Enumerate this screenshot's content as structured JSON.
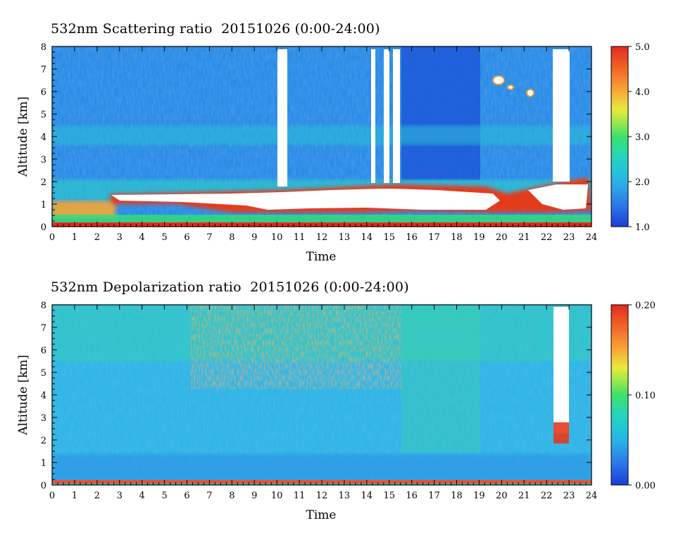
{
  "chart_data": [
    {
      "type": "heatmap",
      "title": "532nm Scattering ratio  20151026 (0:00-24:00)",
      "xlabel": "Time",
      "ylabel": "Altitude [km]",
      "x_ticks": [
        "0",
        "1",
        "2",
        "3",
        "4",
        "5",
        "6",
        "7",
        "8",
        "9",
        "10",
        "11",
        "12",
        "13",
        "14",
        "15",
        "16",
        "17",
        "18",
        "19",
        "20",
        "21",
        "22",
        "23",
        "24"
      ],
      "y_ticks": [
        "0",
        "1",
        "2",
        "3",
        "4",
        "5",
        "6",
        "7",
        "8"
      ],
      "xlim": [
        0,
        24
      ],
      "ylim": [
        0,
        8
      ],
      "colorbar": {
        "min": 1.0,
        "max": 5.0,
        "ticks": [
          "1.0",
          "2.0",
          "3.0",
          "4.0",
          "5.0"
        ]
      },
      "features": {
        "background_value": 1.7,
        "aerosol_layer_top_km": 1.8,
        "cloud_layer_km": [
          1.2,
          1.8
        ],
        "cloud_layer_hours": [
          2.5,
          24
        ],
        "clear_columns_hours": [
          [
            10.0,
            10.5
          ],
          [
            13.6,
            13.8
          ],
          [
            14.3,
            14.7
          ],
          [
            15.0,
            15.5
          ],
          [
            22.5,
            23.2
          ]
        ],
        "mid_layer_km": 4.2
      }
    },
    {
      "type": "heatmap",
      "title": "532nm Depolarization ratio  20151026 (0:00-24:00)",
      "xlabel": "Time",
      "ylabel": "Altitude [km]",
      "x_ticks": [
        "0",
        "1",
        "2",
        "3",
        "4",
        "5",
        "6",
        "7",
        "8",
        "9",
        "10",
        "11",
        "12",
        "13",
        "14",
        "15",
        "16",
        "17",
        "18",
        "19",
        "20",
        "21",
        "22",
        "23",
        "24"
      ],
      "y_ticks": [
        "0",
        "1",
        "2",
        "3",
        "4",
        "5",
        "6",
        "7",
        "8"
      ],
      "xlim": [
        0,
        24
      ],
      "ylim": [
        0,
        8
      ],
      "colorbar": {
        "min": 0.0,
        "max": 0.2,
        "ticks": [
          "0.00",
          "0.10",
          "0.20"
        ]
      },
      "features": {
        "background_value": 0.05,
        "noisy_high_altitude_hours": [
          6,
          15.5
        ],
        "surface_layer_km": 0.1,
        "cloud_column_hours": [
          22.5,
          23.2
        ]
      }
    }
  ]
}
